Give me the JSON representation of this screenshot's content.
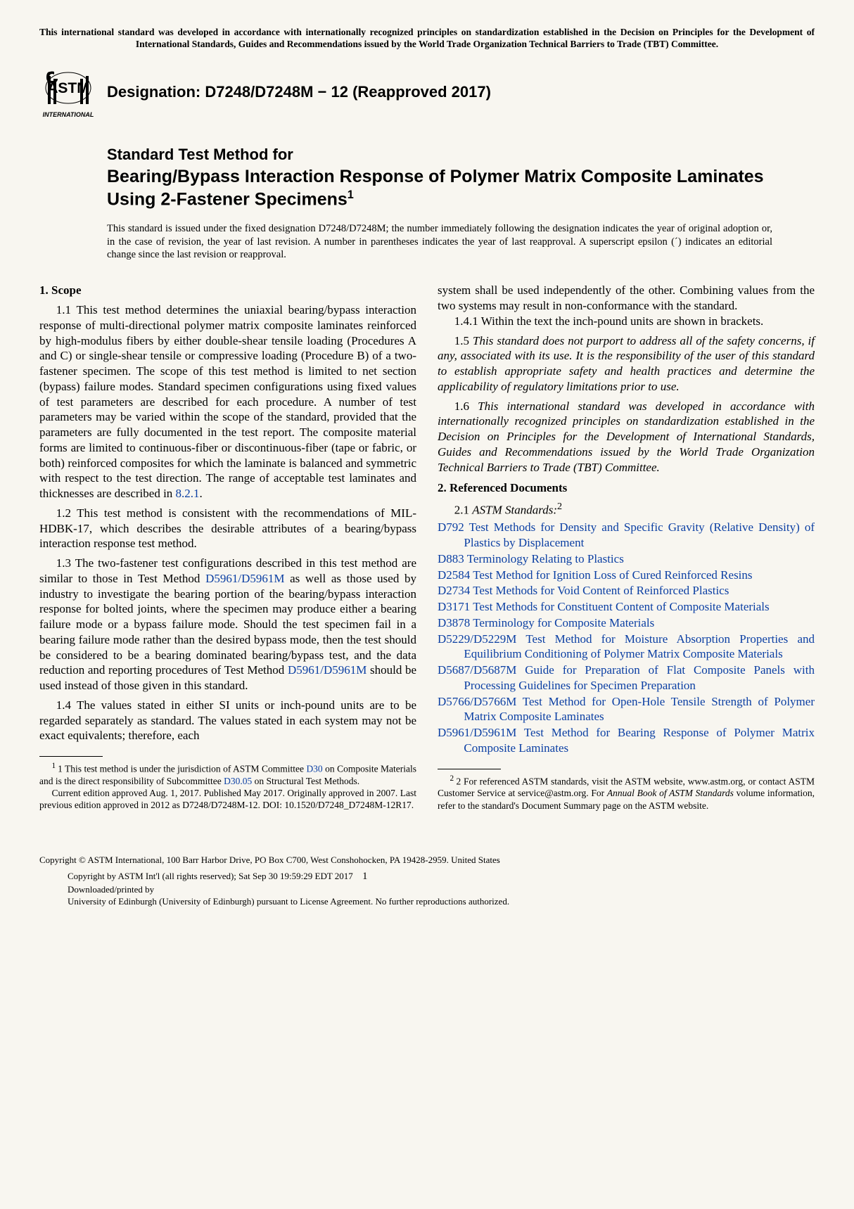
{
  "top_notice": "This international standard was developed in accordance with internationally recognized principles on standardization established in the Decision on Principles for the Development of International Standards, Guides and Recommendations issued by the World Trade Organization Technical Barriers to Trade (TBT) Committee.",
  "logo_text_top": "INTERNATIONAL",
  "designation": "Designation: D7248/D7248M − 12 (Reapproved 2017)",
  "title_prefix": "Standard Test Method for",
  "title_main": "Bearing/Bypass Interaction Response of Polymer Matrix Composite Laminates Using 2-Fastener Specimens",
  "title_super": "1",
  "issuance": "This standard is issued under the fixed designation D7248/D7248M; the number immediately following the designation indicates the year of original adoption or, in the case of revision, the year of last revision. A number in parentheses indicates the year of last reapproval. A superscript epsilon (´) indicates an editorial change since the last revision or reapproval.",
  "left": {
    "scope_head": "1. Scope",
    "p11a": "1.1 This test method determines the uniaxial bearing/bypass interaction response of multi-directional polymer matrix composite laminates reinforced by high-modulus fibers by either double-shear tensile loading (Procedures A and C) or single-shear tensile or compressive loading (Procedure B) of a two-fastener specimen. The scope of this test method is limited to net section (bypass) failure modes. Standard specimen configurations using fixed values of test parameters are described for each procedure. A number of test parameters may be varied within the scope of the standard, provided that the parameters are fully documented in the test report. The composite material forms are limited to continuous-fiber or discontinuous-fiber (tape or fabric, or both) reinforced composites for which the laminate is balanced and symmetric with respect to the test direction. The range of acceptable test laminates and thicknesses are described in ",
    "p11_link": "8.2.1",
    "p11b": ".",
    "p12": "1.2 This test method is consistent with the recommendations of MIL-HDBK-17, which describes the desirable attributes of a bearing/bypass interaction response test method.",
    "p13a": "1.3 The two-fastener test configurations described in this test method are similar to those in Test Method ",
    "p13_link1": "D5961/D5961M",
    "p13b": " as well as those used by industry to investigate the bearing portion of the bearing/bypass interaction response for bolted joints, where the specimen may produce either a bearing failure mode or a bypass failure mode. Should the test specimen fail in a bearing failure mode rather than the desired bypass mode, then the test should be considered to be a bearing dominated bearing/bypass test, and the data reduction and reporting procedures of Test Method ",
    "p13_link2": "D5961/D5961M",
    "p13c": " should be used instead of those given in this standard.",
    "p14": "1.4 The values stated in either SI units or inch-pound units are to be regarded separately as standard. The values stated in each system may not be exact equivalents; therefore, each",
    "fn1a": "1 This test method is under the jurisdiction of ASTM Committee ",
    "fn1_link1": "D30",
    "fn1b": " on Composite Materials and is the direct responsibility of Subcommittee ",
    "fn1_link2": "D30.05",
    "fn1c": " on Structural Test Methods.",
    "fn1d": "Current edition approved Aug. 1, 2017. Published May 2017. Originally approved in 2007. Last previous edition approved in 2012 as D7248/D7248M-12. DOI: 10.1520/D7248_D7248M-12R17."
  },
  "right": {
    "p14cont": "system shall be used independently of the other. Combining values from the two systems may result in non-conformance with the standard.",
    "p141": "1.4.1 Within the text the inch-pound units are shown in brackets.",
    "p15": "1.5 This standard does not purport to address all of the safety concerns, if any, associated with its use. It is the responsibility of the user of this standard to establish appropriate safety and health practices and determine the applicability of regulatory limitations prior to use.",
    "p16": "1.6 This international standard was developed in accordance with internationally recognized principles on standardization established in the Decision on Principles for the Development of International Standards, Guides and Recommendations issued by the World Trade Organization Technical Barriers to Trade (TBT) Committee.",
    "ref_head": "2. Referenced Documents",
    "sub21a": "2.1 ",
    "sub21b": "ASTM Standards:",
    "sub21sup": "2",
    "refs": [
      {
        "code": "D792",
        "text": " Test Methods for Density and Specific Gravity (Relative Density) of Plastics by Displacement"
      },
      {
        "code": "D883",
        "text": " Terminology Relating to Plastics"
      },
      {
        "code": "D2584",
        "text": " Test Method for Ignition Loss of Cured Reinforced Resins"
      },
      {
        "code": "D2734",
        "text": " Test Methods for Void Content of Reinforced Plastics"
      },
      {
        "code": "D3171",
        "text": " Test Methods for Constituent Content of Composite Materials"
      },
      {
        "code": "D3878",
        "text": " Terminology for Composite Materials"
      },
      {
        "code": "D5229/D5229M",
        "text": " Test Method for Moisture Absorption Properties and Equilibrium Conditioning of Polymer Matrix Composite Materials"
      },
      {
        "code": "D5687/D5687M",
        "text": " Guide for Preparation of Flat Composite Panels with Processing Guidelines for Specimen Preparation"
      },
      {
        "code": "D5766/D5766M",
        "text": " Test Method for Open-Hole Tensile Strength of Polymer Matrix Composite Laminates"
      },
      {
        "code": "D5961/D5961M",
        "text": " Test Method for Bearing Response of Polymer Matrix Composite Laminates"
      }
    ],
    "fn2a": "2 For referenced ASTM standards, visit the ASTM website, www.astm.org, or contact ASTM Customer Service at service@astm.org. For ",
    "fn2b": "Annual Book of ASTM Standards",
    "fn2c": " volume information, refer to the standard's Document Summary page on the ASTM website."
  },
  "footer": {
    "cmain": "Copyright © ASTM International, 100 Barr Harbor Drive, PO Box C700, West Conshohocken, PA 19428-2959. United States",
    "l1": "Copyright by ASTM Int'l (all rights reserved); Sat Sep 30 19:59:29 EDT 2017",
    "l2": "Downloaded/printed by",
    "l3": "University of Edinburgh (University of Edinburgh) pursuant to License Agreement. No further reproductions authorized.",
    "page": "1"
  },
  "colors": {
    "link": "#0b3fa3",
    "text": "#000000",
    "bg": "#f8f6f0"
  }
}
